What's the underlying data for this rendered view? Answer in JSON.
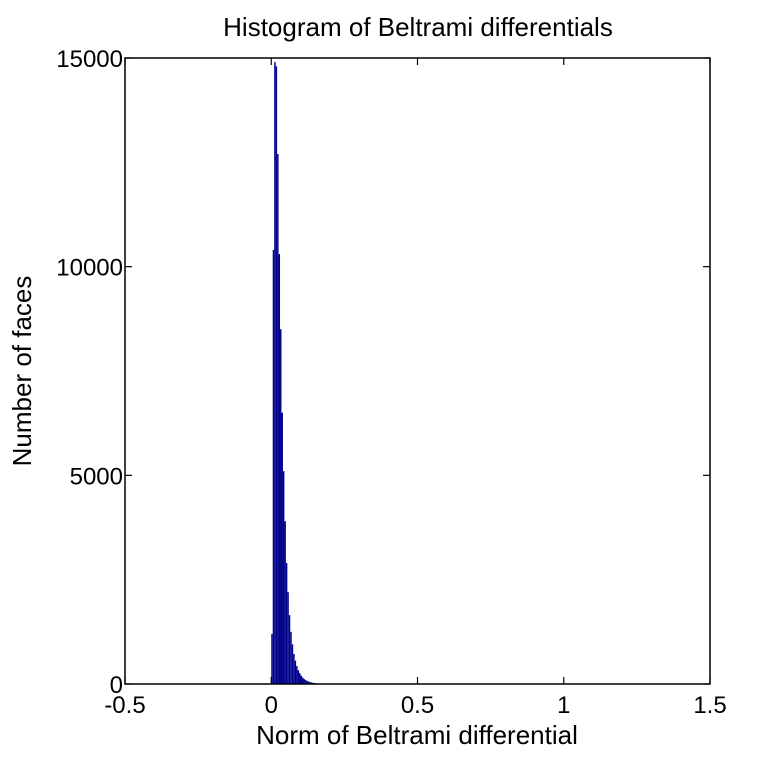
{
  "chart_data": {
    "type": "bar",
    "title": "Histogram of Beltrami differentials",
    "xlabel": "Norm of Beltrami differential",
    "ylabel": "Number of faces",
    "xlim": [
      -0.5,
      1.5
    ],
    "ylim": [
      0,
      15000
    ],
    "xticks": [
      -0.5,
      0,
      0.5,
      1,
      1.5
    ],
    "xtick_labels": [
      "-0.5",
      "0",
      "0.5",
      "1",
      "1.5"
    ],
    "yticks": [
      0,
      5000,
      10000,
      15000
    ],
    "ytick_labels": [
      "0",
      "5000",
      "10000",
      "15000"
    ],
    "grid": false,
    "bar_color": "#00008b",
    "bin_width": 0.005,
    "bin_centers": [
      0.0025,
      0.0075,
      0.0125,
      0.0175,
      0.0225,
      0.0275,
      0.0325,
      0.0375,
      0.0425,
      0.0475,
      0.0525,
      0.0575,
      0.0625,
      0.0675,
      0.0725,
      0.0775,
      0.0825,
      0.0875,
      0.0925,
      0.0975,
      0.1025,
      0.1075,
      0.1125,
      0.1175,
      0.1225,
      0.1275,
      0.1325,
      0.1375,
      0.1425,
      0.1475,
      0.1525,
      0.1575,
      0.1625,
      0.1675,
      0.1725,
      0.1775,
      0.1825,
      0.1875,
      0.1925,
      0.1975,
      0.2025,
      0.2075,
      0.2125,
      0.2175,
      0.2225,
      0.2275,
      0.2325,
      0.2375
    ],
    "values": [
      1200,
      10400,
      14900,
      14800,
      12700,
      10300,
      8500,
      6500,
      5100,
      3900,
      2900,
      2200,
      1650,
      1250,
      950,
      720,
      560,
      430,
      330,
      260,
      200,
      155,
      120,
      95,
      75,
      60,
      47,
      37,
      30,
      24,
      19,
      15,
      12,
      10,
      8,
      6,
      5,
      4,
      3,
      3,
      2,
      2,
      2,
      1,
      1,
      1,
      1,
      1
    ]
  }
}
